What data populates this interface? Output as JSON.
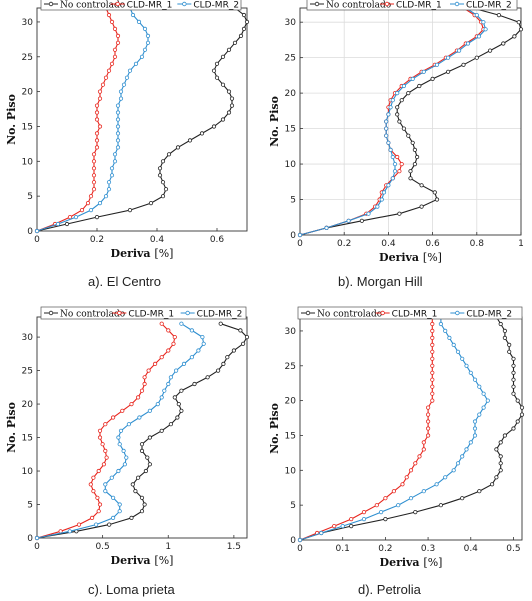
{
  "captions": [
    "a). El Centro",
    "b). Morgan Hill",
    "c). Loma prieta",
    "d). Petrolia"
  ],
  "colors": {
    "No controlado": "#222222",
    "CLD-MR_1": "#e8261e",
    "CLD-MR_2": "#2f8fd0"
  },
  "chart_data": [
    {
      "type": "line",
      "caption": "a). El Centro",
      "xlabel": "Deriva",
      "xlabel_unit": "[%]",
      "ylabel": "No. Piso",
      "xlim": [
        0,
        0.7
      ],
      "ylim": [
        0,
        32
      ],
      "xticks": [
        0,
        0.2,
        0.4,
        0.6
      ],
      "xtick_labels": [
        "0",
        "0.2",
        "0.4",
        "0.6"
      ],
      "yticks": [
        0,
        5,
        10,
        15,
        20,
        25,
        30
      ],
      "legend": "top",
      "grid": false,
      "series": [
        {
          "name": "No controlado",
          "x": [
            0,
            0.1,
            0.2,
            0.31,
            0.38,
            0.42,
            0.43,
            0.42,
            0.41,
            0.41,
            0.42,
            0.44,
            0.47,
            0.51,
            0.55,
            0.59,
            0.62,
            0.64,
            0.65,
            0.65,
            0.64,
            0.62,
            0.6,
            0.59,
            0.6,
            0.62,
            0.64,
            0.66,
            0.68,
            0.69,
            0.7,
            0.69,
            0.66
          ]
        },
        {
          "name": "CLD-MR_1",
          "x": [
            0,
            0.06,
            0.11,
            0.15,
            0.17,
            0.18,
            0.19,
            0.19,
            0.19,
            0.19,
            0.19,
            0.19,
            0.2,
            0.2,
            0.2,
            0.21,
            0.2,
            0.2,
            0.2,
            0.21,
            0.21,
            0.22,
            0.23,
            0.24,
            0.25,
            0.26,
            0.26,
            0.27,
            0.27,
            0.26,
            0.25,
            0.24,
            0.23
          ]
        },
        {
          "name": "CLD-MR_2",
          "x": [
            0,
            0.07,
            0.13,
            0.18,
            0.21,
            0.23,
            0.24,
            0.24,
            0.25,
            0.25,
            0.26,
            0.26,
            0.27,
            0.27,
            0.27,
            0.27,
            0.27,
            0.27,
            0.27,
            0.28,
            0.28,
            0.29,
            0.3,
            0.31,
            0.33,
            0.35,
            0.36,
            0.37,
            0.37,
            0.36,
            0.34,
            0.32,
            0.31
          ]
        }
      ]
    },
    {
      "type": "line",
      "caption": "b). Morgan Hill",
      "xlabel": "Deriva",
      "xlabel_unit": "[%]",
      "ylabel": "No. Piso",
      "xlim": [
        0,
        1
      ],
      "ylim": [
        0,
        32
      ],
      "xticks": [
        0,
        0.2,
        0.4,
        0.6,
        0.8,
        1
      ],
      "xtick_labels": [
        "0",
        "0.2",
        "0.4",
        "0.6",
        "0.8",
        "1"
      ],
      "yticks": [
        0,
        5,
        10,
        15,
        20,
        25,
        30
      ],
      "legend": "top",
      "grid": true,
      "series": [
        {
          "name": "No controlado",
          "x": [
            0,
            0.12,
            0.28,
            0.45,
            0.55,
            0.62,
            0.61,
            0.55,
            0.5,
            0.5,
            0.52,
            0.53,
            0.52,
            0.51,
            0.49,
            0.47,
            0.45,
            0.44,
            0.44,
            0.46,
            0.49,
            0.54,
            0.6,
            0.67,
            0.74,
            0.8,
            0.86,
            0.92,
            0.97,
            1.0,
            0.99,
            0.9,
            0.78
          ]
        },
        {
          "name": "CLD-MR_1",
          "x": [
            0,
            0.12,
            0.22,
            0.3,
            0.34,
            0.36,
            0.37,
            0.39,
            0.42,
            0.45,
            0.46,
            0.44,
            0.41,
            0.4,
            0.39,
            0.39,
            0.39,
            0.4,
            0.4,
            0.41,
            0.43,
            0.46,
            0.5,
            0.55,
            0.61,
            0.66,
            0.71,
            0.75,
            0.8,
            0.83,
            0.82,
            0.79,
            0.74
          ]
        },
        {
          "name": "CLD-MR_2",
          "x": [
            0,
            0.12,
            0.22,
            0.31,
            0.35,
            0.37,
            0.38,
            0.4,
            0.42,
            0.43,
            0.43,
            0.42,
            0.41,
            0.4,
            0.39,
            0.39,
            0.39,
            0.4,
            0.41,
            0.42,
            0.44,
            0.47,
            0.51,
            0.56,
            0.62,
            0.67,
            0.72,
            0.76,
            0.81,
            0.84,
            0.83,
            0.8,
            0.75
          ]
        }
      ]
    },
    {
      "type": "line",
      "caption": "c). Loma prieta",
      "xlabel": "Deriva",
      "xlabel_unit": "[%]",
      "ylabel": "No. Piso",
      "xlim": [
        0,
        1.6
      ],
      "ylim": [
        0,
        33
      ],
      "xticks": [
        0,
        0.5,
        1,
        1.5
      ],
      "xtick_labels": [
        "0",
        "0.5",
        "1",
        "1.5"
      ],
      "yticks": [
        0,
        5,
        10,
        15,
        20,
        25,
        30
      ],
      "legend": "top",
      "grid": false,
      "series": [
        {
          "name": "No controlado",
          "x": [
            0,
            0.3,
            0.55,
            0.72,
            0.8,
            0.82,
            0.8,
            0.75,
            0.73,
            0.77,
            0.83,
            0.86,
            0.84,
            0.8,
            0.8,
            0.86,
            0.95,
            1.02,
            1.07,
            1.1,
            1.08,
            1.05,
            1.1,
            1.2,
            1.3,
            1.38,
            1.42,
            1.45,
            1.5,
            1.57,
            1.6,
            1.55,
            1.4
          ]
        },
        {
          "name": "CLD-MR_1",
          "x": [
            0,
            0.18,
            0.32,
            0.42,
            0.47,
            0.48,
            0.46,
            0.43,
            0.41,
            0.43,
            0.47,
            0.51,
            0.53,
            0.52,
            0.5,
            0.48,
            0.48,
            0.52,
            0.58,
            0.65,
            0.72,
            0.77,
            0.8,
            0.82,
            0.82,
            0.85,
            0.9,
            0.95,
            1.0,
            1.04,
            1.05,
            1.0,
            0.95
          ]
        },
        {
          "name": "CLD-MR_2",
          "x": [
            0,
            0.25,
            0.45,
            0.58,
            0.63,
            0.63,
            0.58,
            0.52,
            0.52,
            0.57,
            0.62,
            0.67,
            0.68,
            0.66,
            0.63,
            0.62,
            0.64,
            0.7,
            0.78,
            0.86,
            0.92,
            0.95,
            0.97,
            1.0,
            1.02,
            1.06,
            1.12,
            1.18,
            1.23,
            1.27,
            1.26,
            1.18,
            1.1
          ]
        }
      ]
    },
    {
      "type": "line",
      "caption": "d). Petrolia",
      "xlabel": "Deriva",
      "xlabel_unit": "[%]",
      "ylabel": "No. Piso",
      "xlim": [
        0,
        0.52
      ],
      "ylim": [
        0,
        32
      ],
      "xticks": [
        0,
        0.1,
        0.2,
        0.3,
        0.4,
        0.5
      ],
      "xtick_labels": [
        "0",
        "0.1",
        "0.2",
        "0.3",
        "0.4",
        "0.5"
      ],
      "yticks": [
        0,
        5,
        10,
        15,
        20,
        25,
        30
      ],
      "legend": "top",
      "grid": false,
      "series": [
        {
          "name": "No controlado",
          "x": [
            0,
            0.05,
            0.12,
            0.2,
            0.27,
            0.33,
            0.38,
            0.42,
            0.45,
            0.46,
            0.47,
            0.47,
            0.47,
            0.46,
            0.47,
            0.48,
            0.5,
            0.51,
            0.52,
            0.52,
            0.51,
            0.5,
            0.5,
            0.5,
            0.5,
            0.5,
            0.5,
            0.49,
            0.49,
            0.48,
            0.48,
            0.47,
            0.46
          ]
        },
        {
          "name": "CLD-MR_1",
          "x": [
            0,
            0.04,
            0.08,
            0.12,
            0.15,
            0.18,
            0.2,
            0.22,
            0.24,
            0.25,
            0.26,
            0.27,
            0.28,
            0.29,
            0.29,
            0.3,
            0.3,
            0.3,
            0.3,
            0.3,
            0.31,
            0.31,
            0.31,
            0.31,
            0.31,
            0.31,
            0.31,
            0.31,
            0.31,
            0.31,
            0.31,
            0.31,
            0.31
          ]
        },
        {
          "name": "CLD-MR_2",
          "x": [
            0,
            0.05,
            0.1,
            0.15,
            0.19,
            0.23,
            0.26,
            0.29,
            0.32,
            0.34,
            0.36,
            0.37,
            0.38,
            0.39,
            0.4,
            0.41,
            0.41,
            0.41,
            0.42,
            0.43,
            0.44,
            0.43,
            0.42,
            0.41,
            0.4,
            0.39,
            0.38,
            0.37,
            0.36,
            0.35,
            0.34,
            0.33,
            0.33
          ]
        }
      ]
    }
  ]
}
